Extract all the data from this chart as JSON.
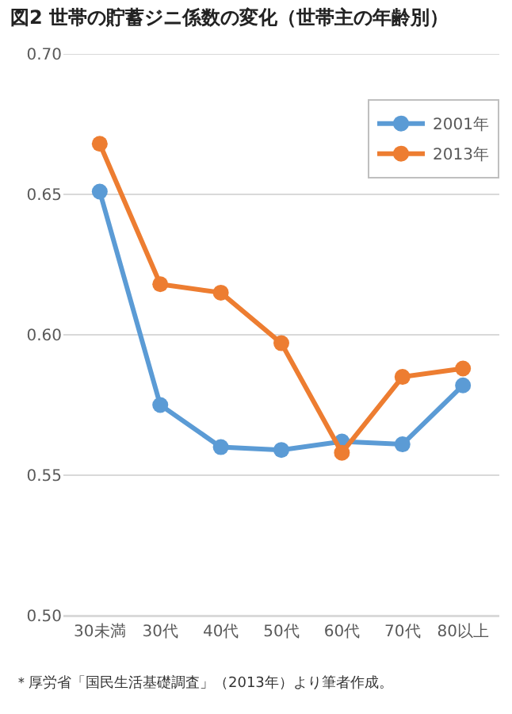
{
  "chart_data": {
    "type": "line",
    "title": "図2 世帯の貯蓄ジニ係数の変化（世帯主の年齢別）",
    "categories": [
      "30未満",
      "30代",
      "40代",
      "50代",
      "60代",
      "70代",
      "80以上"
    ],
    "series": [
      {
        "name": "2001年",
        "color": "#5b9bd5",
        "values": [
          0.651,
          0.575,
          0.56,
          0.559,
          0.562,
          0.561,
          0.582
        ]
      },
      {
        "name": "2013年",
        "color": "#ed7d31",
        "values": [
          0.668,
          0.618,
          0.615,
          0.597,
          0.558,
          0.585,
          0.588
        ]
      }
    ],
    "ylim": [
      0.5,
      0.7
    ],
    "yticks": [
      {
        "value": 0.5,
        "label": "0.50"
      },
      {
        "value": 0.55,
        "label": "0.55"
      },
      {
        "value": 0.6,
        "label": "0.60"
      },
      {
        "value": 0.65,
        "label": "0.65"
      },
      {
        "value": 0.7,
        "label": "0.70"
      }
    ],
    "grid": "y",
    "legend": "top right",
    "marker": "circle",
    "line_style": "solid",
    "annotations": [
      "＊厚労省「国民生活基礎調査」（2013年）より筆者作成。"
    ]
  }
}
